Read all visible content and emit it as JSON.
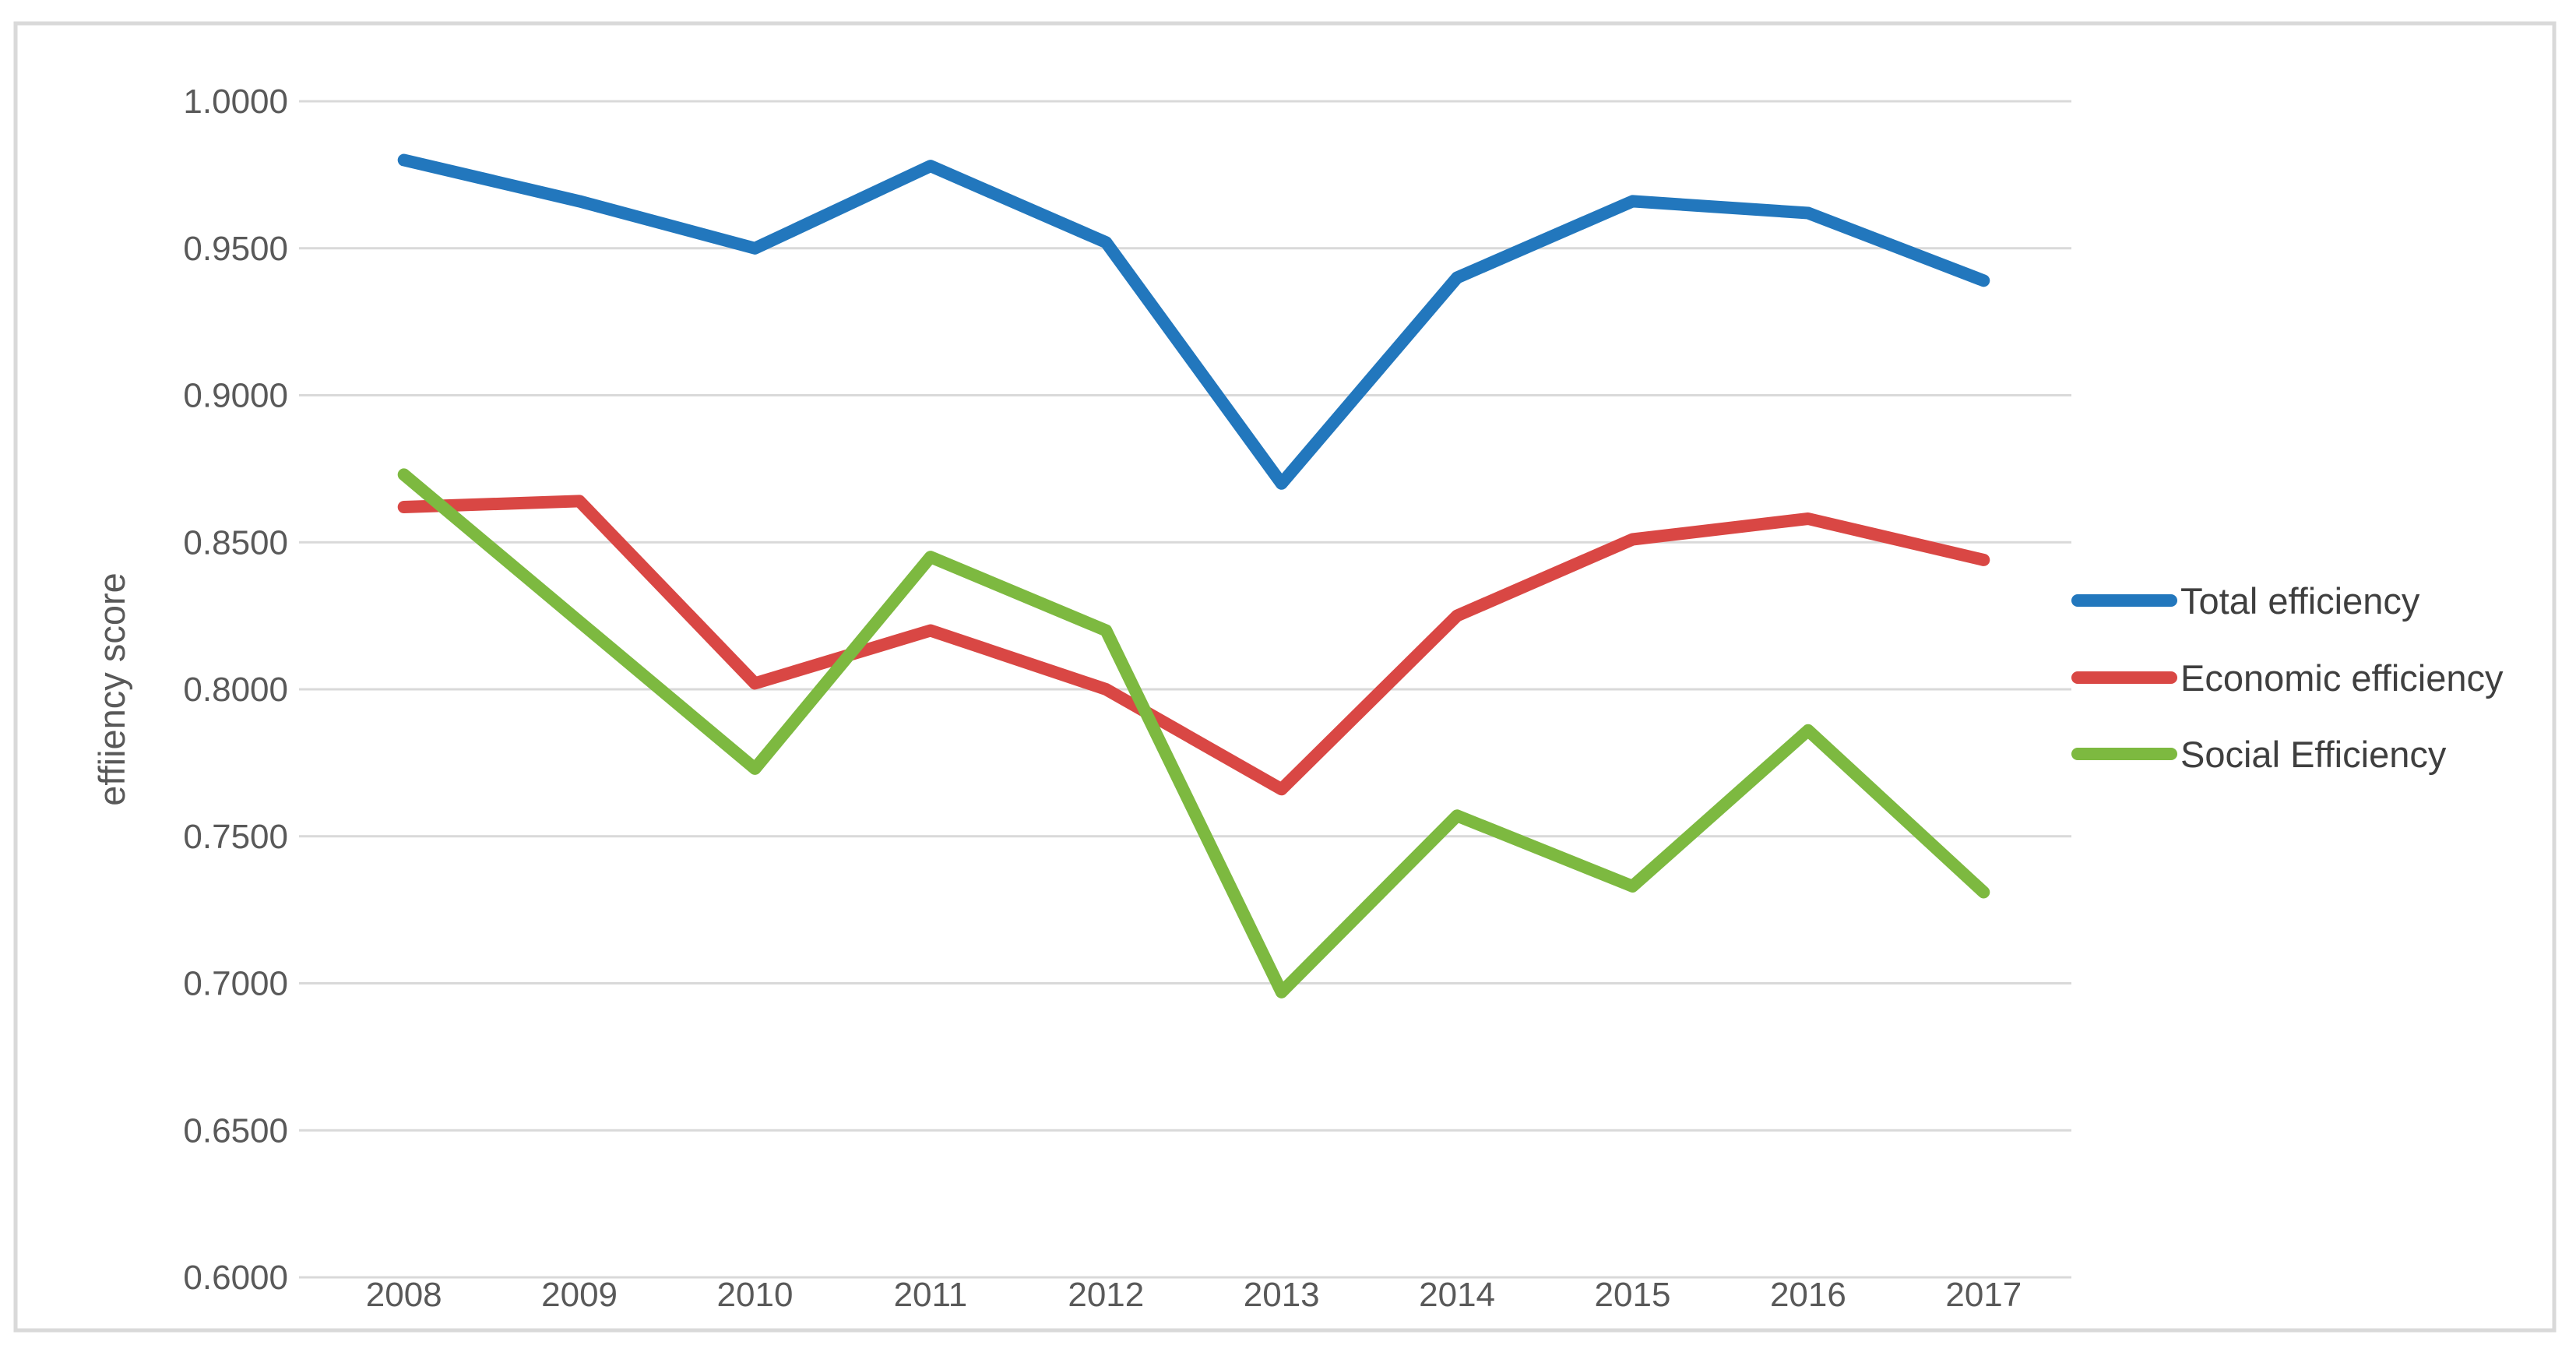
{
  "figure": {
    "background": "#ffffff",
    "border_color": "#d9d9d9"
  },
  "chart_data": {
    "type": "line",
    "title": "",
    "xlabel": "",
    "ylabel": "effiiency score",
    "categories": [
      "2008",
      "2009",
      "2010",
      "2011",
      "2012",
      "2013",
      "2014",
      "2015",
      "2016",
      "2017"
    ],
    "series": [
      {
        "name": "Total efficiency",
        "color": "#2277bd",
        "values": [
          0.98,
          0.966,
          0.95,
          0.978,
          0.952,
          0.87,
          0.94,
          0.966,
          0.962,
          0.939
        ]
      },
      {
        "name": "Economic efficiency",
        "color": "#d94744",
        "values": [
          0.862,
          0.864,
          0.802,
          0.82,
          0.8,
          0.766,
          0.825,
          0.851,
          0.858,
          0.844
        ]
      },
      {
        "name": "Social Efficiency",
        "color": "#7db940",
        "values": [
          0.873,
          0.823,
          0.773,
          0.845,
          0.82,
          0.697,
          0.757,
          0.733,
          0.786,
          0.731
        ]
      }
    ],
    "ylim": [
      0.6,
      1.0
    ],
    "ytick_labels": [
      "1.0000",
      "0.9500",
      "0.9000",
      "0.8500",
      "0.8000",
      "0.7500",
      "0.7000",
      "0.6500",
      "0.6000"
    ],
    "grid": true,
    "gridline_color": "#d9d9d9",
    "tick_label_color": "#595959",
    "legend_text_color": "#3f3f3f",
    "legend_position": "right"
  }
}
